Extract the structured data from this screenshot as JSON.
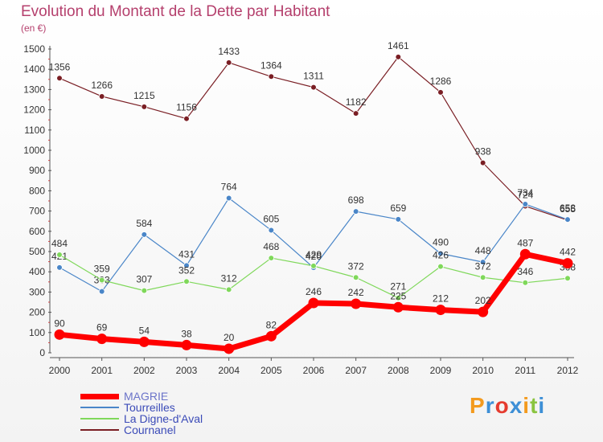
{
  "chart_data": {
    "type": "line",
    "title": "Evolution du Montant de la Dette par Habitant",
    "subtitle": "(en €)",
    "xlabel": "",
    "ylabel": "",
    "x": [
      "2000",
      "2001",
      "2002",
      "2003",
      "2004",
      "2005",
      "2006",
      "2007",
      "2008",
      "2009",
      "2010",
      "2011",
      "2012"
    ],
    "ylim": [
      0,
      1500
    ],
    "yticks": [
      0,
      100,
      200,
      300,
      400,
      500,
      600,
      700,
      800,
      900,
      1000,
      1100,
      1200,
      1300,
      1400,
      1500
    ],
    "grid": false,
    "legend_position": "bottom-left",
    "series": [
      {
        "name": "Cournanel",
        "color": "#7a1e24",
        "values": [
          1356,
          1266,
          1215,
          1156,
          1433,
          1364,
          1311,
          1182,
          1461,
          1286,
          938,
          724,
          655
        ],
        "labels": [
          "1356",
          "1266",
          "1215",
          "1156",
          "1433",
          "1364",
          "1311",
          "1182",
          "1461",
          "1286",
          "938",
          "724",
          "655"
        ]
      },
      {
        "name": "Tourreilles",
        "color": "#4a86c8",
        "values": [
          421,
          303,
          584,
          431,
          764,
          605,
          420,
          698,
          659,
          490,
          448,
          734,
          658
        ],
        "labels": [
          "421",
          "303",
          "584",
          "431",
          "764",
          "605",
          "420",
          "698",
          "659",
          "490",
          "448",
          "734",
          "658"
        ]
      },
      {
        "name": "La Digne-d'Aval",
        "color": "#7fd85a",
        "values": [
          484,
          359,
          307,
          352,
          312,
          468,
          429,
          372,
          271,
          426,
          372,
          346,
          368
        ],
        "labels": [
          "484",
          "359",
          "307",
          "352",
          "312",
          "468",
          "429",
          "372",
          "271",
          "426",
          "372",
          "346",
          "368"
        ]
      },
      {
        "name": "MAGRIE",
        "color": "#ff0000",
        "values": [
          90,
          69,
          54,
          38,
          20,
          82,
          246,
          242,
          225,
          212,
          202,
          487,
          442
        ],
        "labels": [
          "90",
          "69",
          "54",
          "38",
          "20",
          "82",
          "246",
          "242",
          "225",
          "212",
          "202",
          "487",
          "442"
        ]
      }
    ]
  },
  "legend": [
    {
      "name": "MAGRIE",
      "color": "#ff0000"
    },
    {
      "name": "Tourreilles",
      "color": "#4a86c8"
    },
    {
      "name": "La Digne-d'Aval",
      "color": "#7fd85a"
    },
    {
      "name": "Cournanel",
      "color": "#7a1e24"
    }
  ],
  "logo": {
    "letters": [
      "P",
      "r",
      "o",
      "x",
      "i",
      "t",
      "i"
    ],
    "colors": [
      "#f39a1e",
      "#3d8fd6",
      "#e53b2f",
      "#3d8fd6",
      "#f39a1e",
      "#8ac43f",
      "#3d8fd6"
    ]
  }
}
